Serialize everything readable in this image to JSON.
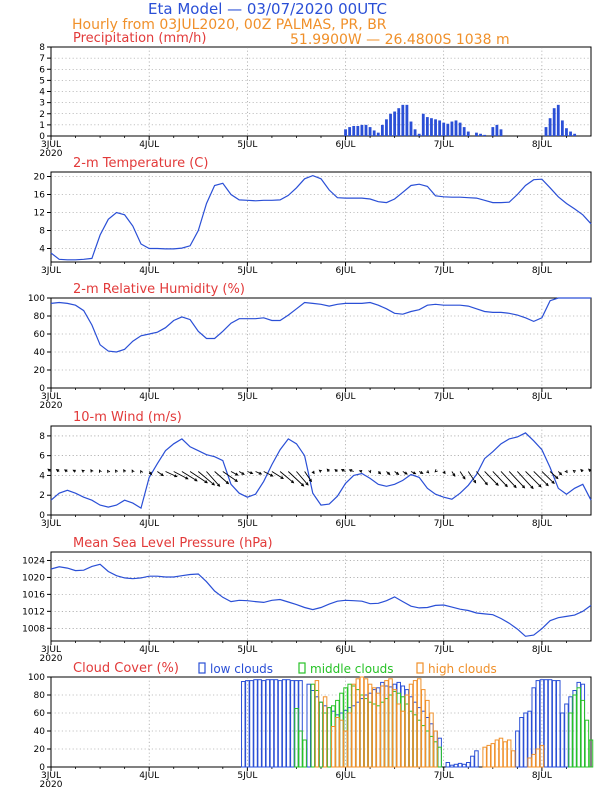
{
  "header": {
    "title": "Eta Model — 03/07/2020 00UTC",
    "subtitle": "Hourly from 03JUL2020, 00Z  PALMAS, PR, BR",
    "location": "51.9900W — 26.4800S     1038   m"
  },
  "x_axis": {
    "tick_labels": [
      "3JUL",
      "4JUL",
      "5JUL",
      "6JUL",
      "7JUL",
      "8JUL"
    ],
    "year_label": "2020",
    "hours_total": 132
  },
  "legend": {
    "low": "low clouds",
    "middle": "middle clouds",
    "high": "high clouds"
  },
  "colors": {
    "title": "#2a4fd6",
    "subtitle": "#f0902a",
    "panel_title": "#e23a3a",
    "line": "#2a4fd6",
    "bar": "#2a4fd6",
    "low": "#2a4fd6",
    "middle": "#27c227",
    "high": "#f0902a"
  },
  "chart_data": [
    {
      "id": "precip",
      "type": "bar",
      "title": "Precipitation (mm/h)",
      "ylim": [
        0,
        8
      ],
      "yticks": [
        0,
        1,
        2,
        3,
        4,
        5,
        6,
        7,
        8
      ],
      "x_unit": "hours since 03JUL2020 00Z",
      "x": [
        72,
        73,
        74,
        75,
        76,
        77,
        78,
        79,
        80,
        81,
        82,
        83,
        84,
        85,
        86,
        87,
        88,
        89,
        90,
        91,
        92,
        93,
        94,
        95,
        96,
        97,
        98,
        99,
        100,
        101,
        102,
        104,
        105,
        106,
        108,
        109,
        110,
        121,
        122,
        123,
        124,
        125,
        126,
        127,
        128
      ],
      "values": [
        0.6,
        0.8,
        0.9,
        0.9,
        1.0,
        1.0,
        0.8,
        0.5,
        0.3,
        1.0,
        1.5,
        2.0,
        2.2,
        2.5,
        2.8,
        2.8,
        1.3,
        0.6,
        0.2,
        2.0,
        1.7,
        1.6,
        1.5,
        1.4,
        1.2,
        1.1,
        1.3,
        1.4,
        1.2,
        0.8,
        0.4,
        0.3,
        0.2,
        0.1,
        0.8,
        1.0,
        0.6,
        0.8,
        1.6,
        2.5,
        2.8,
        1.4,
        0.7,
        0.4,
        0.2
      ]
    },
    {
      "id": "temp",
      "type": "line",
      "title": "2-m Temperature (C)",
      "ylim": [
        1,
        21
      ],
      "yticks": [
        4,
        8,
        12,
        16,
        20
      ],
      "x": [
        0,
        2,
        4,
        6,
        8,
        10,
        12,
        14,
        16,
        18,
        20,
        22,
        24,
        26,
        28,
        30,
        32,
        34,
        36,
        38,
        40,
        42,
        44,
        46,
        48,
        50,
        52,
        54,
        56,
        58,
        60,
        62,
        64,
        66,
        68,
        70,
        72,
        74,
        76,
        78,
        80,
        82,
        84,
        86,
        88,
        90,
        92,
        94,
        96,
        98,
        100,
        102,
        104,
        106,
        108,
        110,
        112,
        114,
        116,
        118,
        120,
        122,
        124,
        126,
        128,
        130,
        132
      ],
      "values": [
        3,
        1.6,
        1.5,
        1.5,
        1.6,
        1.8,
        7,
        10.5,
        12,
        11.5,
        9,
        5,
        4,
        4,
        3.9,
        3.9,
        4.1,
        4.6,
        8,
        14,
        18,
        18.5,
        16,
        14.8,
        14.7,
        14.6,
        14.7,
        14.7,
        14.8,
        15.8,
        17.5,
        19.5,
        20.2,
        19.5,
        17,
        15.3,
        15.2,
        15.2,
        15.2,
        15,
        14.4,
        14.2,
        15,
        16.5,
        18,
        18.3,
        17.8,
        15.7,
        15.5,
        15.4,
        15.4,
        15.3,
        15.2,
        14.7,
        14.2,
        14.2,
        14.3,
        16,
        18,
        19.3,
        19.4,
        17.5,
        15.5,
        14,
        12.8,
        11.5,
        9.5
      ]
    },
    {
      "id": "rh",
      "type": "line",
      "title": "2-m Relative Humidity (%)",
      "ylim": [
        0,
        100
      ],
      "yticks": [
        0,
        20,
        40,
        60,
        80,
        100
      ],
      "x": [
        0,
        2,
        4,
        6,
        8,
        10,
        12,
        14,
        16,
        18,
        20,
        22,
        24,
        26,
        28,
        30,
        32,
        34,
        36,
        38,
        40,
        42,
        44,
        46,
        48,
        50,
        52,
        54,
        56,
        58,
        60,
        62,
        64,
        66,
        68,
        70,
        72,
        74,
        76,
        78,
        80,
        82,
        84,
        86,
        88,
        90,
        92,
        94,
        96,
        98,
        100,
        102,
        104,
        106,
        108,
        110,
        112,
        114,
        116,
        118,
        120,
        122,
        124,
        126,
        128,
        130,
        132
      ],
      "values": [
        94,
        95,
        94,
        92,
        86,
        70,
        48,
        41,
        40,
        43,
        52,
        58,
        60,
        62,
        67,
        75,
        79,
        76,
        63,
        55,
        55,
        63,
        72,
        77,
        77,
        77,
        78,
        75,
        75,
        81,
        88,
        95,
        94,
        93,
        91,
        93,
        94,
        94,
        94,
        95,
        92,
        88,
        83,
        82,
        85,
        87,
        92,
        93,
        92,
        92,
        92,
        91,
        88,
        85,
        84,
        84,
        83,
        81,
        78,
        74,
        78,
        97,
        100,
        100,
        100,
        100,
        100
      ]
    },
    {
      "id": "wind",
      "type": "line",
      "title": "10-m Wind (m/s)",
      "ylim": [
        0,
        9
      ],
      "yticks": [
        0,
        2,
        4,
        6,
        8
      ],
      "x": [
        0,
        2,
        4,
        6,
        8,
        10,
        12,
        14,
        16,
        18,
        20,
        22,
        24,
        26,
        28,
        30,
        32,
        34,
        36,
        38,
        40,
        42,
        44,
        46,
        48,
        50,
        52,
        54,
        56,
        58,
        60,
        62,
        64,
        66,
        68,
        70,
        72,
        74,
        76,
        78,
        80,
        82,
        84,
        86,
        88,
        90,
        92,
        94,
        96,
        98,
        100,
        102,
        104,
        106,
        108,
        110,
        112,
        114,
        116,
        118,
        120,
        122,
        124,
        126,
        128,
        130,
        132
      ],
      "values": [
        1.5,
        2.2,
        2.5,
        2.2,
        1.8,
        1.5,
        1,
        0.8,
        1,
        1.5,
        1.2,
        0.7,
        3.8,
        5.2,
        6.5,
        7.2,
        7.7,
        6.9,
        6.5,
        6.1,
        5.9,
        5.5,
        3.1,
        2.2,
        1.8,
        2.1,
        3.4,
        5.1,
        6.6,
        7.7,
        7.2,
        6,
        2.2,
        1,
        1.1,
        1.9,
        3.2,
        4,
        4.2,
        3.7,
        3.1,
        2.9,
        3.1,
        3.5,
        4.1,
        3.8,
        2.7,
        2.1,
        1.8,
        1.6,
        2.2,
        3,
        4.1,
        5.7,
        6.4,
        7.2,
        7.7,
        7.9,
        8.3,
        7.5,
        6.6,
        4.8,
        2.7,
        2.1,
        2.7,
        3.1,
        1.5
      ],
      "barbs": {
        "x": [
          0,
          2,
          4,
          6,
          8,
          10,
          12,
          14,
          16,
          18,
          20,
          22,
          24,
          26,
          28,
          30,
          32,
          34,
          36,
          38,
          40,
          42,
          44,
          46,
          48,
          50,
          52,
          54,
          56,
          58,
          60,
          62,
          64,
          66,
          68,
          70,
          72,
          74,
          76,
          78,
          80,
          82,
          84,
          86,
          88,
          90,
          92,
          94,
          96,
          98,
          100,
          102,
          104,
          106,
          108,
          110,
          112,
          114,
          116,
          118,
          120,
          122,
          124,
          126,
          128,
          130,
          132
        ],
        "u": [
          -0.9,
          -0.8,
          -0.8,
          -0.7,
          -0.5,
          -0.3,
          -0.2,
          -0.2,
          -0.3,
          -0.3,
          -0.2,
          -0.1,
          0.7,
          1.8,
          3.5,
          4.4,
          4.7,
          5.3,
          5,
          4.1,
          4.3,
          4.5,
          2.1,
          1.5,
          1.6,
          1.8,
          2.8,
          3.5,
          4.2,
          4.8,
          3.6,
          2.1,
          0.4,
          -0.5,
          -0.6,
          -0.7,
          -1.2,
          -1.3,
          -0.7,
          0.1,
          0.7,
          1,
          1.2,
          1.3,
          1.4,
          1.1,
          0.4,
          -0.1,
          0.4,
          0.9,
          1.5,
          2.3,
          3.4,
          4.2,
          4.5,
          4.7,
          4.8,
          4.9,
          4.8,
          4.5,
          3.8,
          2.4,
          1,
          0.2,
          -0.4,
          -0.6,
          -0.7
        ],
        "v": [
          0.7,
          0.6,
          0.5,
          0.4,
          0.4,
          0.5,
          0.4,
          0.3,
          0.4,
          0.5,
          0.4,
          0.2,
          -0.9,
          -1.3,
          -1.6,
          -2.3,
          -2.9,
          -3.5,
          -4.2,
          -4.6,
          -3.8,
          -3.1,
          -1.1,
          -0.9,
          -0.6,
          -0.8,
          -1.4,
          -2.2,
          -3.5,
          -4.5,
          -4.2,
          -3.1,
          -0.6,
          0.4,
          0.7,
          0.6,
          0.6,
          0.5,
          0.2,
          -0.3,
          -0.7,
          -0.9,
          -0.9,
          -0.8,
          -0.7,
          -0.6,
          -0.4,
          -0.1,
          -0.6,
          -1.4,
          -2.3,
          -3.5,
          -4.1,
          -4.3,
          -4.7,
          -5,
          -5.1,
          -5.3,
          -4.8,
          -4.4,
          -3.7,
          -2.2,
          -1,
          -0.3,
          0.3,
          0.6,
          0.7
        ]
      }
    },
    {
      "id": "mslp",
      "type": "line",
      "title": "Mean Sea Level Pressure (hPa)",
      "ylim": [
        1005,
        1026
      ],
      "yticks": [
        1008,
        1012,
        1016,
        1020,
        1024
      ],
      "x": [
        0,
        2,
        4,
        6,
        8,
        10,
        12,
        14,
        16,
        18,
        20,
        22,
        24,
        26,
        28,
        30,
        32,
        34,
        36,
        38,
        40,
        42,
        44,
        46,
        48,
        50,
        52,
        54,
        56,
        58,
        60,
        62,
        64,
        66,
        68,
        70,
        72,
        74,
        76,
        78,
        80,
        82,
        84,
        86,
        88,
        90,
        92,
        94,
        96,
        98,
        100,
        102,
        104,
        106,
        108,
        110,
        112,
        114,
        116,
        118,
        120,
        122,
        124,
        126,
        128,
        130,
        132
      ],
      "values": [
        1022,
        1022.5,
        1022.2,
        1021.6,
        1021.7,
        1022.6,
        1023.1,
        1021.4,
        1020.4,
        1019.9,
        1019.7,
        1019.9,
        1020.3,
        1020.3,
        1020.1,
        1020.1,
        1020.4,
        1020.7,
        1020.8,
        1019,
        1016.8,
        1015.3,
        1014.3,
        1014.6,
        1014.5,
        1014.3,
        1014.1,
        1014.6,
        1014.8,
        1014.2,
        1013.6,
        1012.9,
        1012.4,
        1012.9,
        1013.7,
        1014.4,
        1014.6,
        1014.5,
        1014.4,
        1013.8,
        1013.9,
        1014.5,
        1015.4,
        1014.3,
        1013.2,
        1012.8,
        1012.9,
        1013.4,
        1013.5,
        1013,
        1012.5,
        1012.2,
        1011.6,
        1011.4,
        1011.2,
        1010.3,
        1009.2,
        1007.8,
        1006.1,
        1006.4,
        1007.9,
        1009.8,
        1010.5,
        1010.8,
        1011.1,
        1012,
        1013.4
      ]
    },
    {
      "id": "cloud",
      "type": "bar",
      "title": "Cloud Cover (%)",
      "ylim": [
        0,
        100
      ],
      "yticks": [
        0,
        20,
        40,
        60,
        80,
        100
      ],
      "series": [
        {
          "name": "low clouds",
          "x": [
            47,
            48,
            49,
            50,
            51,
            52,
            53,
            54,
            55,
            56,
            57,
            58,
            59,
            60,
            61,
            63,
            64,
            65,
            66,
            67,
            68,
            69,
            70,
            71,
            72,
            73,
            74,
            75,
            76,
            77,
            78,
            79,
            80,
            81,
            82,
            83,
            84,
            85,
            86,
            87,
            88,
            89,
            90,
            91,
            92,
            93,
            94,
            95,
            97,
            98,
            99,
            100,
            101,
            102,
            103,
            104,
            114,
            115,
            116,
            117,
            118,
            119,
            120,
            121,
            122,
            123,
            124,
            125,
            126,
            127,
            128,
            129,
            130
          ],
          "values": [
            95,
            96,
            96,
            97,
            97,
            96,
            97,
            97,
            97,
            96,
            97,
            97,
            96,
            96,
            96,
            92,
            85,
            78,
            72,
            68,
            66,
            62,
            58,
            60,
            63,
            66,
            68,
            72,
            76,
            80,
            82,
            86,
            88,
            94,
            90,
            89,
            92,
            94,
            90,
            86,
            78,
            72,
            66,
            62,
            55,
            48,
            40,
            32,
            5,
            2,
            3,
            4,
            3,
            5,
            12,
            18,
            40,
            55,
            60,
            62,
            88,
            96,
            97,
            97,
            97,
            96,
            96,
            60,
            70,
            78,
            85,
            94,
            92
          ]
        },
        {
          "name": "middle clouds",
          "x": [
            60,
            61,
            62,
            64,
            65,
            66,
            67,
            68,
            69,
            70,
            71,
            72,
            73,
            74,
            75,
            76,
            77,
            78,
            79,
            80,
            81,
            82,
            83,
            84,
            85,
            86,
            87,
            88,
            89,
            90,
            91,
            92,
            93,
            94,
            95,
            127,
            128,
            129,
            130,
            131,
            132
          ],
          "values": [
            65,
            40,
            30,
            92,
            85,
            72,
            60,
            66,
            68,
            74,
            82,
            88,
            92,
            90,
            86,
            80,
            76,
            72,
            70,
            68,
            72,
            76,
            80,
            84,
            82,
            78,
            70,
            62,
            58,
            52,
            46,
            40,
            34,
            28,
            22,
            60,
            80,
            88,
            74,
            52,
            30
          ]
        },
        {
          "name": "high clouds",
          "x": [
            65,
            67,
            69,
            70,
            71,
            72,
            73,
            74,
            75,
            76,
            77,
            78,
            79,
            80,
            81,
            82,
            83,
            84,
            85,
            86,
            87,
            88,
            89,
            90,
            91,
            92,
            93,
            94,
            106,
            107,
            108,
            109,
            110,
            111,
            112,
            113,
            117,
            118,
            119,
            120
          ],
          "values": [
            96,
            78,
            45,
            55,
            52,
            40,
            60,
            92,
            98,
            100,
            98,
            92,
            88,
            82,
            90,
            96,
            98,
            86,
            70,
            62,
            80,
            92,
            96,
            98,
            86,
            74,
            60,
            40,
            22,
            24,
            26,
            30,
            32,
            28,
            30,
            18,
            10,
            14,
            20,
            24
          ]
        }
      ]
    }
  ]
}
